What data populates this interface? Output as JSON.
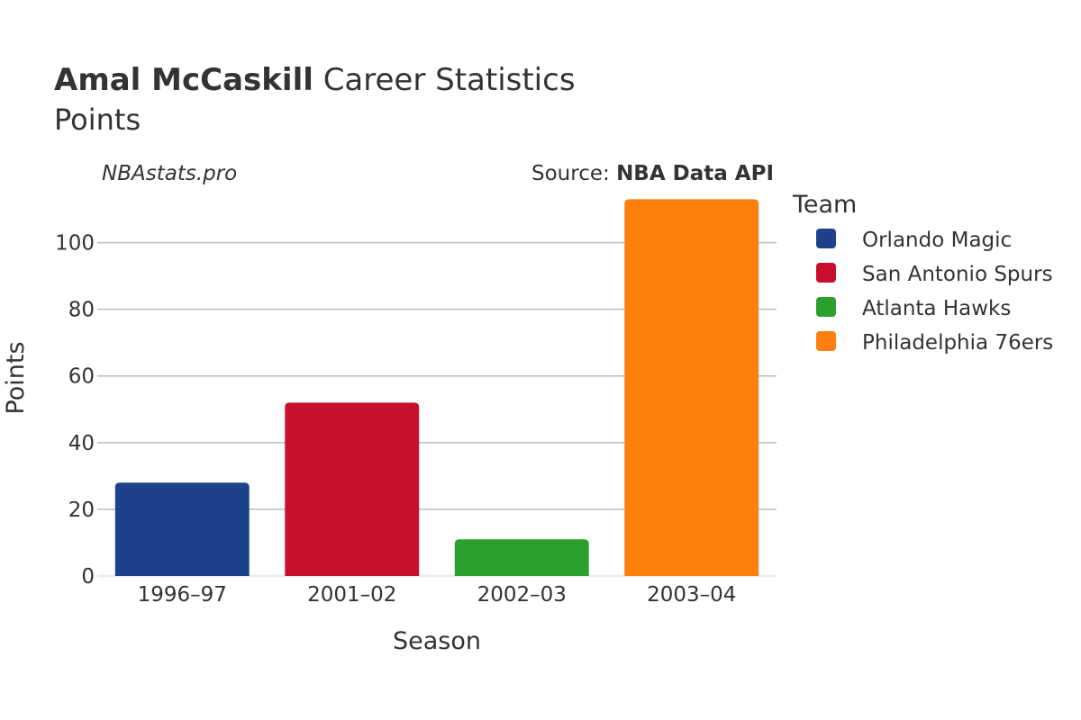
{
  "header": {
    "player_name": "Amal McCaskill",
    "title_rest": "Career Statistics",
    "subtitle": "Points",
    "watermark": "NBAstats.pro",
    "source_prefix": "Source: ",
    "source_name": "NBA Data API"
  },
  "chart_data": {
    "type": "bar",
    "xlabel": "Season",
    "ylabel": "Points",
    "ylim": [
      0,
      115
    ],
    "yticks": [
      0,
      20,
      40,
      60,
      80,
      100
    ],
    "grid": true,
    "legend_title": "Team",
    "legend_position": "right",
    "categories": [
      "1996–97",
      "2001–02",
      "2002–03",
      "2003–04"
    ],
    "bars": [
      {
        "category": "1996–97",
        "team": "Orlando Magic",
        "value": 28,
        "color": "#1d428a"
      },
      {
        "category": "2001–02",
        "team": "San Antonio Spurs",
        "value": 52,
        "color": "#c8102e"
      },
      {
        "category": "2002–03",
        "team": "Atlanta Hawks",
        "value": 11,
        "color": "#2ca02c"
      },
      {
        "category": "2003–04",
        "team": "Philadelphia 76ers",
        "value": 113,
        "color": "#ff7f0e"
      }
    ]
  }
}
